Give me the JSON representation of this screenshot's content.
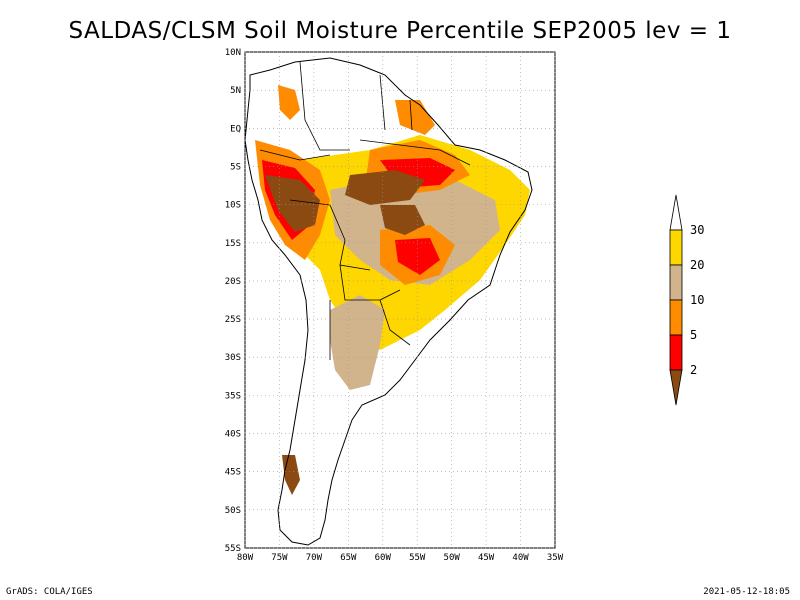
{
  "title": "SALDAS/CLSM Soil Moisture Percentile SEP2005 lev = 1",
  "footer": {
    "left": "GrADS: COLA/IGES",
    "right": "2021-05-12-18:05"
  },
  "axes": {
    "lat_labels": [
      "10N",
      "5N",
      "EQ",
      "5S",
      "10S",
      "15S",
      "20S",
      "25S",
      "30S",
      "35S",
      "40S",
      "45S",
      "50S",
      "55S"
    ],
    "lon_labels": [
      "80W",
      "75W",
      "70W",
      "65W",
      "60W",
      "55W",
      "50W",
      "45W",
      "40W",
      "35W"
    ]
  },
  "legend": {
    "labels": [
      "2",
      "5",
      "10",
      "20",
      "30"
    ],
    "colors": [
      "#8b4a12",
      "#ff0000",
      "#ff8c00",
      "#d2b48c",
      "#ffd700",
      "#ffffff"
    ]
  },
  "chart_data": {
    "type": "map",
    "title": "SALDAS/CLSM Soil Moisture Percentile SEP2005 lev = 1",
    "region": "South America",
    "lat_range": [
      -55,
      10
    ],
    "lon_range": [
      -80,
      -35
    ],
    "legend_levels": [
      2,
      5,
      10,
      20,
      30
    ]
  }
}
